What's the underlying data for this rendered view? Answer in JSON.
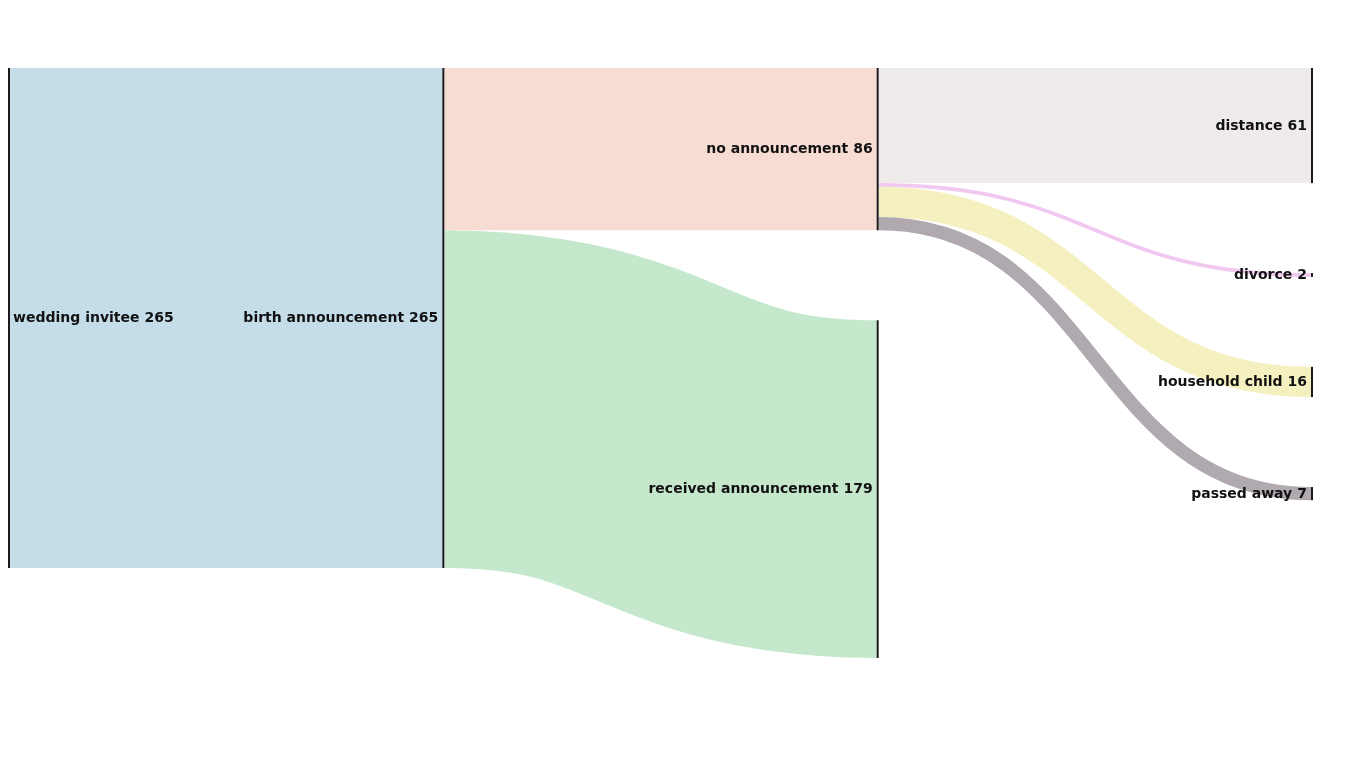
{
  "chart_data": {
    "type": "other",
    "color": "#1a1a1a",
    "data_labels": true,
    "categories": [
      "wedding invitee",
      "birth announcement",
      "no announcement",
      "received announcement",
      "distance",
      "divorce",
      "household child",
      "passed away"
    ],
    "series": [
      {
        "values": [
          265,
          265,
          null,
          null,
          null,
          null,
          null,
          null
        ],
        "colors": [
          null,
          "#c4dde9",
          null,
          null,
          null,
          null,
          null,
          null
        ]
      },
      {
        "values": [
          null,
          null,
          86,
          179,
          null,
          null,
          null,
          null
        ],
        "colors": [
          null,
          null,
          "#f7dcd3",
          "#c5e8cd",
          null,
          null,
          null,
          null
        ]
      },
      {
        "values": [
          null,
          null,
          null,
          null,
          61,
          2,
          16,
          7
        ],
        "colors": [
          null,
          null,
          null,
          null,
          "#efebea",
          "#f0c8f0",
          "#f5f0c0",
          "#b0a9b0"
        ]
      }
    ]
  }
}
